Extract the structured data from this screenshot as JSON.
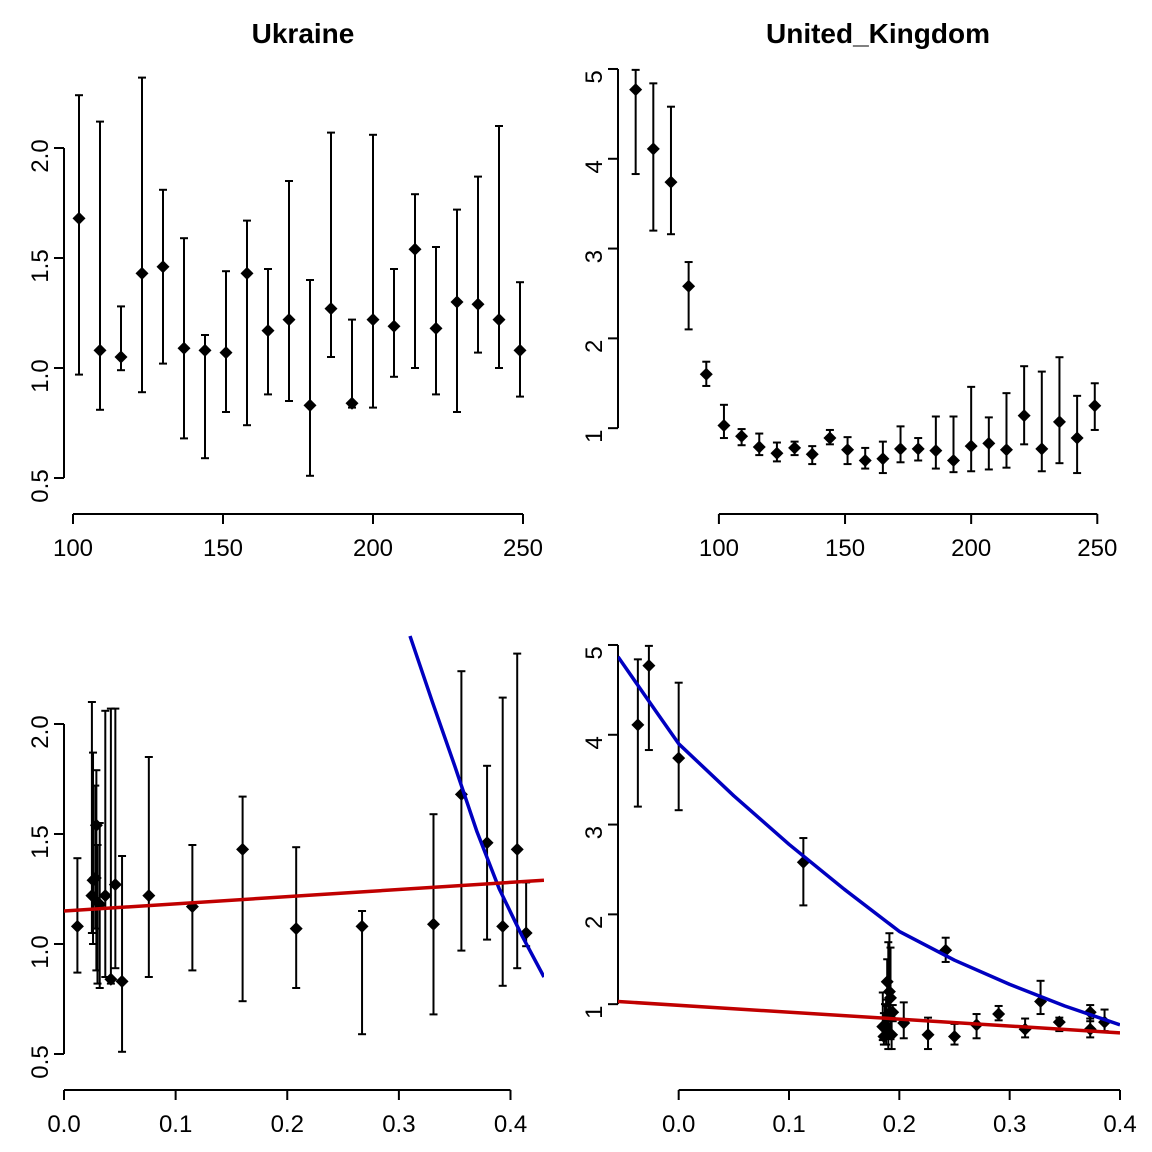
{
  "chart_data": [
    {
      "type": "scatter",
      "title": "Ukraine",
      "xlabel": "",
      "ylabel": "",
      "xlim": [
        97,
        257
      ],
      "ylim": [
        0.4,
        2.4
      ],
      "xticks": [
        100,
        150,
        200,
        250
      ],
      "yticks": [
        0.5,
        1.0,
        1.5,
        2.0
      ],
      "xtick_labels": [
        "100",
        "150",
        "200",
        "250"
      ],
      "ytick_labels": [
        "0.5",
        "1.0",
        "1.5",
        "2.0"
      ],
      "points": [
        {
          "x": 102,
          "y": 1.68,
          "lo": 0.97,
          "hi": 2.24
        },
        {
          "x": 109,
          "y": 1.08,
          "lo": 0.81,
          "hi": 2.12
        },
        {
          "x": 116,
          "y": 1.05,
          "lo": 0.99,
          "hi": 1.28
        },
        {
          "x": 123,
          "y": 1.43,
          "lo": 0.89,
          "hi": 2.32
        },
        {
          "x": 130,
          "y": 1.46,
          "lo": 1.02,
          "hi": 1.81
        },
        {
          "x": 137,
          "y": 1.09,
          "lo": 0.68,
          "hi": 1.59
        },
        {
          "x": 144,
          "y": 1.08,
          "lo": 0.59,
          "hi": 1.15
        },
        {
          "x": 151,
          "y": 1.07,
          "lo": 0.8,
          "hi": 1.44
        },
        {
          "x": 158,
          "y": 1.43,
          "lo": 0.74,
          "hi": 1.67
        },
        {
          "x": 165,
          "y": 1.17,
          "lo": 0.88,
          "hi": 1.45
        },
        {
          "x": 172,
          "y": 1.22,
          "lo": 0.85,
          "hi": 1.85
        },
        {
          "x": 179,
          "y": 0.83,
          "lo": 0.51,
          "hi": 1.4
        },
        {
          "x": 186,
          "y": 1.27,
          "lo": 1.05,
          "hi": 2.07
        },
        {
          "x": 193,
          "y": 0.84,
          "lo": 0.82,
          "hi": 1.22
        },
        {
          "x": 200,
          "y": 1.22,
          "lo": 0.82,
          "hi": 2.06
        },
        {
          "x": 207,
          "y": 1.19,
          "lo": 0.96,
          "hi": 1.45
        },
        {
          "x": 214,
          "y": 1.54,
          "lo": 1.0,
          "hi": 1.79
        },
        {
          "x": 221,
          "y": 1.18,
          "lo": 0.88,
          "hi": 1.55
        },
        {
          "x": 228,
          "y": 1.3,
          "lo": 0.8,
          "hi": 1.72
        },
        {
          "x": 235,
          "y": 1.29,
          "lo": 1.07,
          "hi": 1.87
        },
        {
          "x": 242,
          "y": 1.22,
          "lo": 1.0,
          "hi": 2.1
        },
        {
          "x": 249,
          "y": 1.08,
          "lo": 0.87,
          "hi": 1.39
        }
      ],
      "lines": []
    },
    {
      "type": "scatter",
      "title": "United_Kingdom",
      "xlabel": "",
      "ylabel": "",
      "xlim": [
        60,
        259
      ],
      "ylim": [
        0.2,
        5.1
      ],
      "xticks": [
        100,
        150,
        200,
        250
      ],
      "yticks": [
        1,
        2,
        3,
        4,
        5
      ],
      "xtick_labels": [
        "100",
        "150",
        "200",
        "250"
      ],
      "ytick_labels": [
        "1",
        "2",
        "3",
        "4",
        "5"
      ],
      "points": [
        {
          "x": 67,
          "y": 4.77,
          "lo": 3.83,
          "hi": 4.99
        },
        {
          "x": 74,
          "y": 4.11,
          "lo": 3.2,
          "hi": 4.84
        },
        {
          "x": 81,
          "y": 3.74,
          "lo": 3.16,
          "hi": 4.58
        },
        {
          "x": 88,
          "y": 2.58,
          "lo": 2.1,
          "hi": 2.85
        },
        {
          "x": 95,
          "y": 1.6,
          "lo": 1.47,
          "hi": 1.74
        },
        {
          "x": 102,
          "y": 1.03,
          "lo": 0.89,
          "hi": 1.26
        },
        {
          "x": 109,
          "y": 0.91,
          "lo": 0.81,
          "hi": 0.99
        },
        {
          "x": 116,
          "y": 0.79,
          "lo": 0.7,
          "hi": 0.94
        },
        {
          "x": 123,
          "y": 0.72,
          "lo": 0.63,
          "hi": 0.84
        },
        {
          "x": 130,
          "y": 0.78,
          "lo": 0.7,
          "hi": 0.85
        },
        {
          "x": 137,
          "y": 0.71,
          "lo": 0.6,
          "hi": 0.8
        },
        {
          "x": 144,
          "y": 0.89,
          "lo": 0.82,
          "hi": 0.98
        },
        {
          "x": 151,
          "y": 0.76,
          "lo": 0.6,
          "hi": 0.9
        },
        {
          "x": 158,
          "y": 0.64,
          "lo": 0.55,
          "hi": 0.78
        },
        {
          "x": 165,
          "y": 0.66,
          "lo": 0.5,
          "hi": 0.85
        },
        {
          "x": 172,
          "y": 0.77,
          "lo": 0.62,
          "hi": 1.02
        },
        {
          "x": 179,
          "y": 0.77,
          "lo": 0.64,
          "hi": 0.89
        },
        {
          "x": 186,
          "y": 0.75,
          "lo": 0.55,
          "hi": 1.13
        },
        {
          "x": 193,
          "y": 0.64,
          "lo": 0.51,
          "hi": 1.13
        },
        {
          "x": 200,
          "y": 0.8,
          "lo": 0.52,
          "hi": 1.46
        },
        {
          "x": 207,
          "y": 0.83,
          "lo": 0.54,
          "hi": 1.12
        },
        {
          "x": 214,
          "y": 0.76,
          "lo": 0.56,
          "hi": 1.39
        },
        {
          "x": 221,
          "y": 1.14,
          "lo": 0.82,
          "hi": 1.69
        },
        {
          "x": 228,
          "y": 0.77,
          "lo": 0.52,
          "hi": 1.63
        },
        {
          "x": 235,
          "y": 1.07,
          "lo": 0.61,
          "hi": 1.79
        },
        {
          "x": 242,
          "y": 0.89,
          "lo": 0.5,
          "hi": 1.36
        },
        {
          "x": 249,
          "y": 1.25,
          "lo": 0.98,
          "hi": 1.5
        }
      ],
      "lines": []
    },
    {
      "type": "scatter",
      "title": "",
      "xlabel": "",
      "ylabel": "",
      "xlim": [
        0.0,
        0.43
      ],
      "ylim": [
        0.4,
        2.4
      ],
      "xticks": [
        0.0,
        0.1,
        0.2,
        0.3,
        0.4
      ],
      "yticks": [
        0.5,
        1.0,
        1.5,
        2.0
      ],
      "xtick_labels": [
        "0.0",
        "0.1",
        "0.2",
        "0.3",
        "0.4"
      ],
      "ytick_labels": [
        "0.5",
        "1.0",
        "1.5",
        "2.0"
      ],
      "points": [
        {
          "x": 0.012,
          "y": 1.08,
          "lo": 0.87,
          "hi": 1.39
        },
        {
          "x": 0.025,
          "y": 1.22,
          "lo": 1.05,
          "hi": 2.1
        },
        {
          "x": 0.026,
          "y": 1.29,
          "lo": 1.0,
          "hi": 1.87
        },
        {
          "x": 0.028,
          "y": 1.3,
          "lo": 1.07,
          "hi": 1.72
        },
        {
          "x": 0.029,
          "y": 1.54,
          "lo": 0.88,
          "hi": 1.79
        },
        {
          "x": 0.03,
          "y": 1.19,
          "lo": 0.82,
          "hi": 1.45
        },
        {
          "x": 0.032,
          "y": 1.18,
          "lo": 0.8,
          "hi": 1.55
        },
        {
          "x": 0.037,
          "y": 1.22,
          "lo": 0.85,
          "hi": 2.06
        },
        {
          "x": 0.042,
          "y": 0.84,
          "lo": 0.82,
          "hi": 2.07
        },
        {
          "x": 0.046,
          "y": 1.27,
          "lo": 0.89,
          "hi": 2.07
        },
        {
          "x": 0.052,
          "y": 0.83,
          "lo": 0.51,
          "hi": 1.4
        },
        {
          "x": 0.076,
          "y": 1.22,
          "lo": 0.85,
          "hi": 1.85
        },
        {
          "x": 0.115,
          "y": 1.17,
          "lo": 0.88,
          "hi": 1.45
        },
        {
          "x": 0.16,
          "y": 1.43,
          "lo": 0.74,
          "hi": 1.67
        },
        {
          "x": 0.208,
          "y": 1.07,
          "lo": 0.8,
          "hi": 1.44
        },
        {
          "x": 0.267,
          "y": 1.08,
          "lo": 0.59,
          "hi": 1.15
        },
        {
          "x": 0.331,
          "y": 1.09,
          "lo": 0.68,
          "hi": 1.59
        },
        {
          "x": 0.356,
          "y": 1.68,
          "lo": 0.97,
          "hi": 2.24
        },
        {
          "x": 0.379,
          "y": 1.46,
          "lo": 1.02,
          "hi": 1.81
        },
        {
          "x": 0.393,
          "y": 1.08,
          "lo": 0.81,
          "hi": 2.12
        },
        {
          "x": 0.406,
          "y": 1.43,
          "lo": 0.89,
          "hi": 2.32
        },
        {
          "x": 0.414,
          "y": 1.05,
          "lo": 0.99,
          "hi": 1.28
        }
      ],
      "lines": [
        {
          "color": "#0000c0",
          "x": [
            0.31,
            0.33,
            0.35,
            0.37,
            0.39,
            0.41,
            0.43
          ],
          "y": [
            2.4,
            2.1,
            1.81,
            1.51,
            1.25,
            1.04,
            0.85
          ]
        },
        {
          "color": "#c00000",
          "x": [
            0.0,
            0.43
          ],
          "y": [
            1.15,
            1.29
          ]
        }
      ]
    },
    {
      "type": "scatter",
      "title": "",
      "xlabel": "",
      "ylabel": "",
      "xlim": [
        -0.055,
        0.4
      ],
      "ylim": [
        0.2,
        5.1
      ],
      "xticks": [
        0.0,
        0.1,
        0.2,
        0.3,
        0.4
      ],
      "yticks": [
        1,
        2,
        3,
        4,
        5
      ],
      "xtick_labels": [
        "0.0",
        "0.1",
        "0.2",
        "0.3",
        "0.4"
      ],
      "ytick_labels": [
        "1",
        "2",
        "3",
        "4",
        "5"
      ],
      "points": [
        {
          "x": -0.037,
          "y": 4.11,
          "lo": 3.2,
          "hi": 4.84
        },
        {
          "x": -0.027,
          "y": 4.77,
          "lo": 3.83,
          "hi": 4.99
        },
        {
          "x": 0.0,
          "y": 3.74,
          "lo": 3.16,
          "hi": 4.58
        },
        {
          "x": 0.113,
          "y": 2.58,
          "lo": 2.1,
          "hi": 2.85
        },
        {
          "x": 0.185,
          "y": 0.75,
          "lo": 0.6,
          "hi": 1.13
        },
        {
          "x": 0.186,
          "y": 0.64,
          "lo": 0.55,
          "hi": 0.9
        },
        {
          "x": 0.187,
          "y": 0.77,
          "lo": 0.62,
          "hi": 1.0
        },
        {
          "x": 0.188,
          "y": 0.72,
          "lo": 0.55,
          "hi": 1.05
        },
        {
          "x": 0.189,
          "y": 1.25,
          "lo": 0.98,
          "hi": 1.5
        },
        {
          "x": 0.19,
          "y": 0.89,
          "lo": 0.5,
          "hi": 1.69
        },
        {
          "x": 0.191,
          "y": 1.14,
          "lo": 0.82,
          "hi": 1.79
        },
        {
          "x": 0.192,
          "y": 1.07,
          "lo": 0.61,
          "hi": 1.63
        },
        {
          "x": 0.193,
          "y": 0.66,
          "lo": 0.5,
          "hi": 0.85
        },
        {
          "x": 0.194,
          "y": 0.91,
          "lo": 0.81,
          "hi": 0.99
        },
        {
          "x": 0.204,
          "y": 0.79,
          "lo": 0.62,
          "hi": 1.02
        },
        {
          "x": 0.226,
          "y": 0.66,
          "lo": 0.5,
          "hi": 0.85
        },
        {
          "x": 0.242,
          "y": 1.6,
          "lo": 1.47,
          "hi": 1.74
        },
        {
          "x": 0.25,
          "y": 0.64,
          "lo": 0.55,
          "hi": 0.78
        },
        {
          "x": 0.27,
          "y": 0.77,
          "lo": 0.62,
          "hi": 0.89
        },
        {
          "x": 0.29,
          "y": 0.89,
          "lo": 0.82,
          "hi": 0.98
        },
        {
          "x": 0.314,
          "y": 0.72,
          "lo": 0.63,
          "hi": 0.84
        },
        {
          "x": 0.328,
          "y": 1.03,
          "lo": 0.89,
          "hi": 1.26
        },
        {
          "x": 0.345,
          "y": 0.8,
          "lo": 0.7,
          "hi": 0.85
        },
        {
          "x": 0.373,
          "y": 0.91,
          "lo": 0.81,
          "hi": 0.99
        },
        {
          "x": 0.373,
          "y": 0.72,
          "lo": 0.63,
          "hi": 0.84
        },
        {
          "x": 0.386,
          "y": 0.8,
          "lo": 0.7,
          "hi": 0.94
        }
      ],
      "lines": [
        {
          "color": "#0000c0",
          "x": [
            -0.055,
            -0.02,
            0.0,
            0.05,
            0.1,
            0.15,
            0.2,
            0.25,
            0.3,
            0.35,
            0.4
          ],
          "y": [
            4.87,
            4.25,
            3.9,
            3.32,
            2.78,
            2.28,
            1.81,
            1.49,
            1.22,
            0.98,
            0.77
          ]
        },
        {
          "color": "#c00000",
          "x": [
            -0.055,
            0.4
          ],
          "y": [
            1.03,
            0.68
          ]
        }
      ]
    }
  ]
}
